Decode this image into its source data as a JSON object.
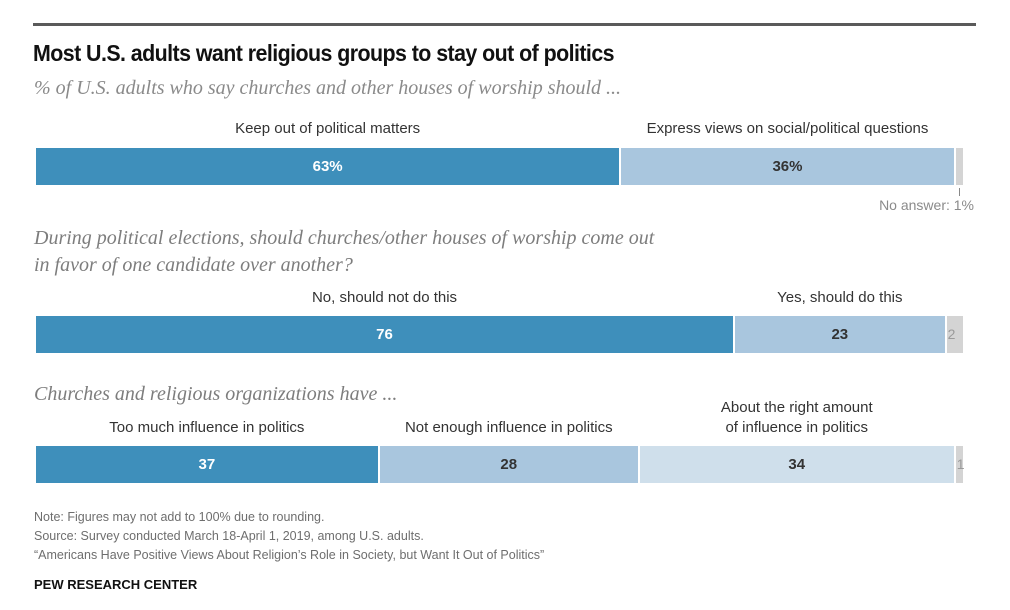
{
  "header": {
    "title": "Most U.S. adults want religious groups to stay out of politics",
    "subtitle": "% of U.S. adults who say churches and other houses of worship should ..."
  },
  "colors": {
    "dark_blue": "#3e8fbb",
    "mid_blue": "#a9c6de",
    "light_blue": "#cfdfeb",
    "no_answer_gray": "#d4d4d4",
    "rule": "#5a5a5a"
  },
  "chart_data": {
    "type": "bar",
    "orientation": "horizontal-stacked",
    "title": "Most U.S. adults want religious groups to stay out of politics",
    "subtitle": "% of U.S. adults who say churches and other houses of worship should ...",
    "xlim": [
      0,
      100
    ],
    "grid": false,
    "panels": [
      {
        "question": "",
        "question_lines": [],
        "segments": [
          {
            "name": "Keep out of political matters",
            "label_lines": [
              "Keep out of political matters"
            ],
            "value": 63,
            "display": "63%",
            "color_key": "dark_blue"
          },
          {
            "name": "Express views on social/political questions",
            "label_lines": [
              "Express views on social/political questions"
            ],
            "value": 36,
            "display": "36%",
            "color_key": "mid_blue"
          }
        ],
        "no_answer": {
          "value": 1,
          "display": "",
          "label": "No answer: 1%"
        }
      },
      {
        "question": "During political elections, should churches/other houses of worship come out in favor of one candidate over another?",
        "question_lines": [
          "During political elections, should churches/other houses of worship come out",
          "in favor of one candidate over another?"
        ],
        "segments": [
          {
            "name": "No, should not do this",
            "label_lines": [
              "No, should not do this"
            ],
            "value": 76,
            "display": "76",
            "color_key": "dark_blue"
          },
          {
            "name": "Yes, should do this",
            "label_lines": [
              "Yes, should do this"
            ],
            "value": 23,
            "display": "23",
            "color_key": "mid_blue"
          }
        ],
        "no_answer": {
          "value": 2,
          "display": "2",
          "label": ""
        }
      },
      {
        "question": "Churches and religious organizations have ...",
        "question_lines": [
          "Churches and religious organizations have ..."
        ],
        "segments": [
          {
            "name": "Too much influence in politics",
            "label_lines": [
              "Too much influence in politics"
            ],
            "value": 37,
            "display": "37",
            "color_key": "dark_blue"
          },
          {
            "name": "Not enough influence in politics",
            "label_lines": [
              "Not enough influence in politics"
            ],
            "value": 28,
            "display": "28",
            "color_key": "mid_blue"
          },
          {
            "name": "About the right amount of influence in politics",
            "label_lines": [
              "About the right amount",
              "of influence in politics"
            ],
            "value": 34,
            "display": "34",
            "color_key": "light_blue"
          }
        ],
        "no_answer": {
          "value": 1,
          "display": "1",
          "label": ""
        }
      }
    ]
  },
  "footer": {
    "note": "Note: Figures may not add to 100% due to rounding.",
    "source": "Source: Survey conducted March 18-April 1, 2019, among U.S. adults.",
    "report": "“Americans Have Positive Views About Religion’s Role in Society, but Want It Out of Politics”",
    "brand": "PEW RESEARCH CENTER"
  }
}
